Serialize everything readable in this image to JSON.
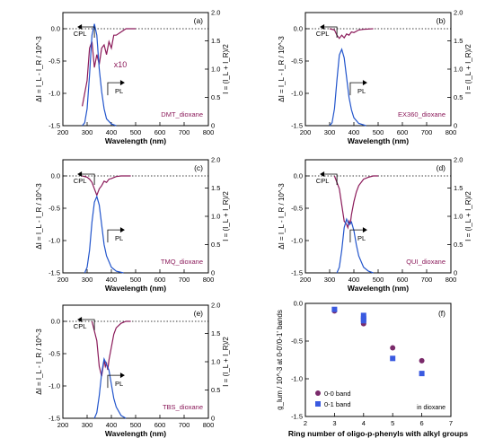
{
  "chart_data": [
    {
      "type": "line",
      "panel": "(a)",
      "sample": "DMT_dioxane",
      "xlabel": "Wavelength (nm)",
      "ylabel_left": "ΔI = I_L - I_R / 10^-3",
      "ylabel_right": "I = (I_L + I_R)/2",
      "xlim": [
        200,
        800
      ],
      "ylim_left": [
        -1.5,
        0.25
      ],
      "ylim_right": [
        0,
        2.0
      ],
      "xticks": [
        200,
        300,
        400,
        500,
        600,
        700,
        800
      ],
      "yticks_left": [
        -1.5,
        -1.0,
        -0.5,
        0.0
      ],
      "yticks_right": [
        0,
        0.5,
        1.0,
        1.5,
        2.0
      ],
      "annotations": [
        "CPL",
        "PL",
        "x10"
      ],
      "series": [
        {
          "role": "CPL",
          "color": "#8b1a5a",
          "x": [
            280,
            300,
            310,
            320,
            330,
            340,
            350,
            360,
            370,
            380,
            390,
            400,
            410,
            420,
            440,
            460,
            500
          ],
          "y": [
            -1.2,
            -0.8,
            -0.3,
            -0.2,
            -0.6,
            -0.4,
            -0.55,
            -0.3,
            -0.25,
            -0.4,
            -0.2,
            -0.3,
            -0.1,
            -0.1,
            -0.05,
            0.0,
            0.0
          ]
        },
        {
          "role": "PL",
          "color": "#2255cc",
          "x": [
            280,
            290,
            300,
            310,
            320,
            330,
            340,
            350,
            360,
            370,
            380,
            400,
            420
          ],
          "y": [
            0.0,
            0.05,
            0.3,
            0.9,
            1.6,
            1.8,
            1.6,
            1.0,
            0.6,
            0.3,
            0.12,
            0.03,
            0.0
          ]
        }
      ]
    },
    {
      "type": "line",
      "panel": "(b)",
      "sample": "EX360_dioxane",
      "xlabel": "Wavelength (nm)",
      "ylabel_left": "ΔI = I_L - I_R / 10^-3",
      "ylabel_right": "I = (I_L + I_R)/2",
      "xlim": [
        200,
        800
      ],
      "ylim_left": [
        -1.5,
        0.25
      ],
      "ylim_right": [
        0,
        2.0
      ],
      "xticks": [
        200,
        300,
        400,
        500,
        600,
        700,
        800
      ],
      "yticks_left": [
        -1.5,
        -1.0,
        -0.5,
        0.0
      ],
      "yticks_right": [
        0,
        0.5,
        1.0,
        1.5,
        2.0
      ],
      "annotations": [
        "CPL",
        "PL"
      ],
      "series": [
        {
          "role": "CPL",
          "color": "#8b1a5a",
          "x": [
            300,
            320,
            330,
            340,
            350,
            360,
            370,
            380,
            390,
            400,
            420,
            440,
            480
          ],
          "y": [
            0.0,
            -0.02,
            -0.1,
            -0.15,
            -0.1,
            -0.14,
            -0.08,
            -0.1,
            -0.05,
            -0.06,
            -0.02,
            -0.01,
            0.0
          ]
        },
        {
          "role": "PL",
          "color": "#2255cc",
          "x": [
            300,
            310,
            320,
            330,
            340,
            350,
            360,
            370,
            380,
            390,
            400,
            420,
            450
          ],
          "y": [
            0.0,
            0.05,
            0.3,
            0.8,
            1.25,
            1.35,
            1.2,
            0.85,
            0.5,
            0.28,
            0.14,
            0.04,
            0.0
          ]
        }
      ]
    },
    {
      "type": "line",
      "panel": "(c)",
      "sample": "TMQ_dioxane",
      "xlabel": "Wavelength (nm)",
      "ylabel_left": "ΔI = I_L - I_R / 10^-3",
      "ylabel_right": "I = (I_L + I_R)/2",
      "xlim": [
        200,
        800
      ],
      "ylim_left": [
        -1.5,
        0.25
      ],
      "ylim_right": [
        0,
        2.0
      ],
      "xticks": [
        200,
        300,
        400,
        500,
        600,
        700,
        800
      ],
      "yticks_left": [
        -1.5,
        -1.0,
        -0.5,
        0.0
      ],
      "yticks_right": [
        0,
        0.5,
        1.0,
        1.5,
        2.0
      ],
      "annotations": [
        "CPL",
        "PL"
      ],
      "series": [
        {
          "role": "CPL",
          "color": "#8b1a5a",
          "x": [
            280,
            300,
            310,
            320,
            330,
            340,
            350,
            360,
            370,
            380,
            390,
            400,
            420,
            440,
            480
          ],
          "y": [
            0.0,
            -0.02,
            -0.05,
            -0.1,
            -0.2,
            -0.3,
            -0.2,
            -0.15,
            -0.08,
            -0.1,
            -0.05,
            -0.04,
            -0.01,
            0.0,
            0.0
          ]
        },
        {
          "role": "PL",
          "color": "#2255cc",
          "x": [
            290,
            300,
            310,
            320,
            330,
            340,
            350,
            360,
            370,
            380,
            400,
            420,
            450
          ],
          "y": [
            0.0,
            0.1,
            0.4,
            0.9,
            1.25,
            1.35,
            1.2,
            0.85,
            0.5,
            0.3,
            0.1,
            0.03,
            0.0
          ]
        }
      ]
    },
    {
      "type": "line",
      "panel": "(d)",
      "sample": "QUI_dioxane",
      "xlabel": "Wavelength (nm)",
      "ylabel_left": "ΔI = I_L - I_R / 10^-3",
      "ylabel_right": "I = (I_L + I_R)/2",
      "xlim": [
        200,
        800
      ],
      "ylim_left": [
        -1.5,
        0.25
      ],
      "ylim_right": [
        0,
        2.0
      ],
      "xticks": [
        200,
        300,
        400,
        500,
        600,
        700,
        800
      ],
      "yticks_left": [
        -1.5,
        -1.0,
        -0.5,
        0.0
      ],
      "yticks_right": [
        0,
        0.5,
        1.0,
        1.5,
        2.0
      ],
      "annotations": [
        "CPL",
        "PL"
      ],
      "series": [
        {
          "role": "CPL",
          "color": "#8b1a5a",
          "x": [
            320,
            340,
            350,
            360,
            370,
            375,
            380,
            385,
            390,
            400,
            410,
            420,
            440,
            460,
            480,
            500
          ],
          "y": [
            0.0,
            -0.2,
            -0.45,
            -0.7,
            -0.75,
            -0.8,
            -0.7,
            -0.75,
            -0.6,
            -0.4,
            -0.25,
            -0.15,
            -0.05,
            -0.02,
            0.0,
            0.0
          ]
        },
        {
          "role": "PL",
          "color": "#2255cc",
          "x": [
            330,
            340,
            350,
            360,
            370,
            380,
            390,
            400,
            410,
            420,
            440,
            460,
            480
          ],
          "y": [
            0.0,
            0.1,
            0.4,
            0.8,
            0.95,
            0.85,
            0.9,
            0.75,
            0.5,
            0.3,
            0.1,
            0.03,
            0.0
          ]
        }
      ]
    },
    {
      "type": "line",
      "panel": "(e)",
      "sample": "TBS_dioxane",
      "xlabel": "Wavelength (nm)",
      "ylabel_left": "ΔI = I_L - I_R / 10^-3",
      "ylabel_right": "I = (I_L + I_R)/2",
      "xlim": [
        200,
        800
      ],
      "ylim_left": [
        -1.5,
        0.25
      ],
      "ylim_right": [
        0,
        2.0
      ],
      "xticks": [
        200,
        300,
        400,
        500,
        600,
        700,
        800
      ],
      "yticks_left": [
        -1.5,
        -1.0,
        -0.5,
        0.0
      ],
      "yticks_right": [
        0,
        0.5,
        1.0,
        1.5,
        2.0
      ],
      "annotations": [
        "CPL",
        "PL"
      ],
      "series": [
        {
          "role": "CPL",
          "color": "#8b1a5a",
          "x": [
            320,
            340,
            350,
            360,
            370,
            375,
            380,
            385,
            390,
            400,
            410,
            420,
            440,
            460,
            480
          ],
          "y": [
            0.0,
            -0.3,
            -0.7,
            -0.85,
            -0.6,
            -0.7,
            -0.65,
            -0.75,
            -0.6,
            -0.4,
            -0.2,
            -0.1,
            -0.03,
            0.0,
            0.0
          ]
        },
        {
          "role": "PL",
          "color": "#2255cc",
          "x": [
            330,
            340,
            350,
            360,
            370,
            375,
            380,
            390,
            400,
            410,
            420,
            440,
            460
          ],
          "y": [
            0.0,
            0.1,
            0.4,
            0.8,
            1.05,
            1.0,
            0.95,
            0.85,
            0.6,
            0.35,
            0.2,
            0.05,
            0.0
          ]
        }
      ]
    },
    {
      "type": "scatter",
      "panel": "(f)",
      "xlabel": "Ring number of oligo-p-phenyls with alkyl groups",
      "ylabel": "g_lum / 10^-3 at 0-0'/0-1' bands",
      "xlim": [
        2,
        7
      ],
      "ylim": [
        -1.5,
        0.0
      ],
      "xticks": [
        2,
        3,
        4,
        5,
        6,
        7
      ],
      "yticks": [
        -1.5,
        -1.0,
        -0.5,
        0.0
      ],
      "annotation": "in dioxane",
      "series": [
        {
          "name": "0-0 band",
          "marker": "circle",
          "color": "#7a2a6a",
          "x": [
            3,
            4,
            4,
            4,
            5,
            6
          ],
          "y": [
            -0.1,
            -0.2,
            -0.24,
            -0.27,
            -0.59,
            -0.76
          ]
        },
        {
          "name": "0-1 band",
          "marker": "square",
          "color": "#3a5ae0",
          "x": [
            3,
            4,
            4,
            4,
            5,
            6
          ],
          "y": [
            -0.08,
            -0.16,
            -0.2,
            -0.23,
            -0.73,
            -0.93
          ]
        }
      ]
    }
  ]
}
